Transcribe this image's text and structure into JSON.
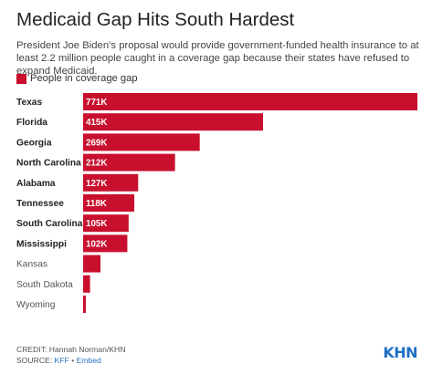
{
  "header": {
    "title": "Medicaid Gap Hits South Hardest",
    "subtitle": "President Joe Biden’s proposal would provide government-funded health insurance to at least 2.2 million people caught in a coverage gap because their states have refused to expand Medicaid."
  },
  "legend": {
    "label": "People in coverage gap",
    "color": "#c8102e"
  },
  "chart_data": {
    "type": "bar",
    "orientation": "horizontal",
    "categories": [
      "Texas",
      "Florida",
      "Georgia",
      "North Carolina",
      "Alabama",
      "Tennessee",
      "South Carolina",
      "Mississippi",
      "Kansas",
      "South Dakota",
      "Wyoming"
    ],
    "series": [
      {
        "name": "People in coverage gap",
        "values": [
          771000,
          415000,
          269000,
          212000,
          127000,
          118000,
          105000,
          102000,
          40000,
          16000,
          6000
        ],
        "labels": [
          "771K",
          "415K",
          "269K",
          "212K",
          "127K",
          "118K",
          "105K",
          "102K",
          "",
          "",
          ""
        ]
      }
    ],
    "bold_categories": [
      "Texas",
      "Florida",
      "Georgia",
      "North Carolina",
      "Alabama",
      "Tennessee",
      "South Carolina",
      "Mississippi"
    ],
    "bar_color": "#c8102e",
    "xlim": [
      0,
      771000
    ],
    "grid": false,
    "legend_position": "top-left"
  },
  "footer": {
    "credit": "CREDIT: Hannah Norman/KHN",
    "source_prefix": "SOURCE: ",
    "source_link": "KFF",
    "separator": " • ",
    "embed_link": "Embed",
    "logo": "KHN"
  }
}
